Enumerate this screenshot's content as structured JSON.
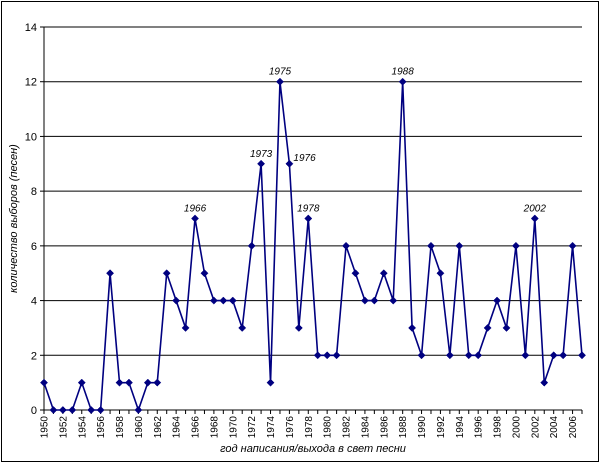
{
  "chart_data": {
    "type": "line",
    "title": "",
    "xlabel": "год написания/выхода в свет песни",
    "ylabel": "количество выборов (песен)",
    "ylim": [
      0,
      14
    ],
    "yticks": [
      0,
      2,
      4,
      6,
      8,
      10,
      12,
      14
    ],
    "grid": "horizontal",
    "legend": "none",
    "series_color": "#000080",
    "x_tick_labels": [
      "1950",
      "1952",
      "1954",
      "1956",
      "1958",
      "1960",
      "1962",
      "1964",
      "1966",
      "1968",
      "1970",
      "1972",
      "1974",
      "1976",
      "1978",
      "1980",
      "1982",
      "1984",
      "1986",
      "1988",
      "1990",
      "1992",
      "1994",
      "1996",
      "1998",
      "2000",
      "2002",
      "2004",
      "2006"
    ],
    "x": [
      1950,
      1951,
      1952,
      1953,
      1954,
      1955,
      1956,
      1957,
      1958,
      1959,
      1960,
      1961,
      1962,
      1963,
      1964,
      1965,
      1966,
      1967,
      1968,
      1969,
      1970,
      1971,
      1972,
      1973,
      1974,
      1975,
      1976,
      1977,
      1978,
      1979,
      1980,
      1981,
      1982,
      1983,
      1984,
      1985,
      1986,
      1987,
      1988,
      1989,
      1990,
      1991,
      1992,
      1993,
      1994,
      1995,
      1996,
      1997,
      1998,
      1999,
      2000,
      2001,
      2002,
      2003,
      2004,
      2005,
      2006,
      2007
    ],
    "series": [
      {
        "values": [
          1,
          0,
          0,
          0,
          1,
          0,
          0,
          5,
          1,
          1,
          0,
          1,
          1,
          5,
          4,
          3,
          7,
          5,
          4,
          4,
          4,
          3,
          6,
          9,
          1,
          12,
          9,
          3,
          7,
          2,
          2,
          2,
          6,
          5,
          4,
          4,
          5,
          4,
          12,
          3,
          2,
          6,
          5,
          2,
          6,
          2,
          2,
          3,
          4,
          3,
          6,
          2,
          7,
          1,
          2,
          2,
          6,
          2
        ]
      }
    ],
    "annotations": [
      {
        "x": 1966,
        "y": 7,
        "text": "1966"
      },
      {
        "x": 1973,
        "y": 9,
        "text": "1973"
      },
      {
        "x": 1975,
        "y": 12,
        "text": "1975"
      },
      {
        "x": 1976,
        "y": 9,
        "text": "1976"
      },
      {
        "x": 1978,
        "y": 7,
        "text": "1978"
      },
      {
        "x": 1988,
        "y": 12,
        "text": "1988"
      },
      {
        "x": 2002,
        "y": 7,
        "text": "2002"
      }
    ]
  }
}
